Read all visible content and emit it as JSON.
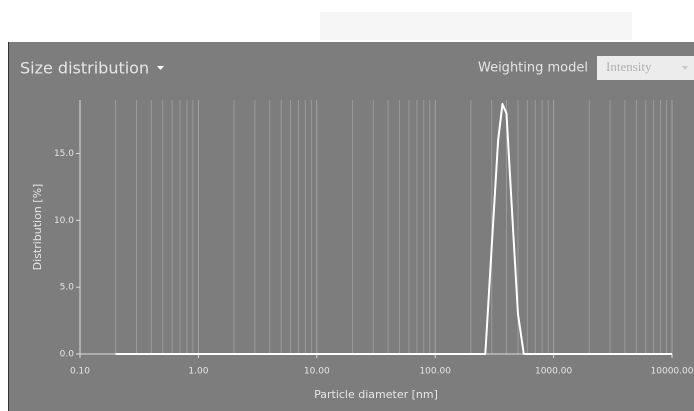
{
  "panel": {
    "title": "Size distribution",
    "weighting_label": "Weighting model",
    "weighting_value": "Intensity"
  },
  "chart_data": {
    "type": "line",
    "xlabel": "Particle diameter [nm]",
    "ylabel": "Distribution [%]",
    "x": [
      0.2,
      250,
      265,
      300,
      340,
      370,
      400,
      450,
      500,
      560,
      10000
    ],
    "series": [
      {
        "color": "#ffffff",
        "values": [
          0,
          0,
          0,
          8,
          16,
          18.7,
          18,
          10,
          3,
          0,
          0
        ]
      }
    ],
    "xscale": "log",
    "xlim": [
      0.1,
      10000
    ],
    "xticks": [
      {
        "value": 0.1,
        "label": "0.10"
      },
      {
        "value": 1,
        "label": "1.00"
      },
      {
        "value": 10,
        "label": "10.00"
      },
      {
        "value": 100,
        "label": "100.00"
      },
      {
        "value": 1000,
        "label": "1000.00"
      },
      {
        "value": 10000,
        "label": "10000.00"
      }
    ],
    "ylim": [
      0,
      19
    ],
    "yticks": [
      {
        "value": 0,
        "label": "0.0"
      },
      {
        "value": 5,
        "label": "5.0"
      },
      {
        "value": 10,
        "label": "10.0"
      },
      {
        "value": 15,
        "label": "15.0"
      }
    ],
    "grid": true
  }
}
